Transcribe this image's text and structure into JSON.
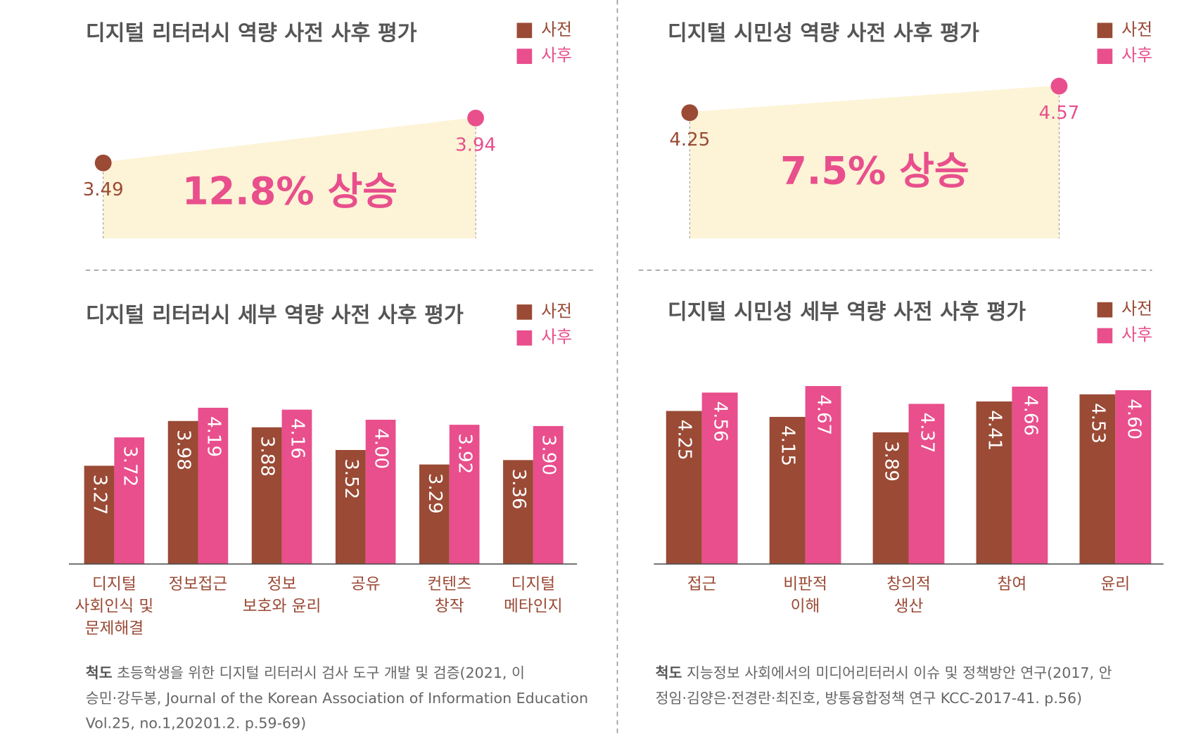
{
  "chart_data": [
    {
      "type": "slope",
      "title": "디지털 리터러시 역량 사전 사후 평가",
      "annotation": "12.8% 상승",
      "series": [
        {
          "name": "사전",
          "color": "#9a4a35",
          "values": [
            3.49
          ]
        },
        {
          "name": "사후",
          "color": "#e84f8c",
          "values": [
            3.94
          ]
        }
      ],
      "ylim": [
        2.735,
        4.36
      ]
    },
    {
      "type": "slope",
      "title": "디지털 시민성 역량 사전 사후 평가",
      "annotation": "7.5% 상승",
      "series": [
        {
          "name": "사전",
          "color": "#9a4a35",
          "values": [
            4.25
          ]
        },
        {
          "name": "사후",
          "color": "#e84f8c",
          "values": [
            4.57
          ]
        }
      ],
      "ylim": [
        2.74,
        4.69
      ]
    },
    {
      "type": "bar",
      "title": "디지털 리터러시 세부 역량 사전 사후 평가",
      "categories": [
        [
          "디지털",
          "사회인식 및",
          "문제해결"
        ],
        [
          "정보접근"
        ],
        [
          "정보",
          "보호와 윤리"
        ],
        [
          "공유"
        ],
        [
          "컨텐츠",
          "창작"
        ],
        [
          "디지털",
          "메타인지"
        ]
      ],
      "series": [
        {
          "name": "사전",
          "color": "#9a4a35",
          "values": [
            3.27,
            3.98,
            3.88,
            3.52,
            3.29,
            3.36
          ],
          "value_labels": [
            "3.27",
            "3.98",
            "3.88",
            "3.52",
            "3.29",
            "3.36"
          ]
        },
        {
          "name": "사후",
          "color": "#e84f8c",
          "values": [
            3.72,
            4.19,
            4.16,
            4.0,
            3.92,
            3.9
          ],
          "value_labels": [
            "3.72",
            "4.19",
            "4.16",
            "4.00",
            "3.92",
            "3.90"
          ]
        }
      ],
      "ylim": [
        1.71,
        4.5
      ],
      "source": {
        "label": "척도",
        "lines": [
          "초등학생을 위한 디지털 리터러시 검사 도구 개발 및 검증(2021, 이",
          "승민·강두봉, Journal of the Korean Association of Information Education",
          "Vol.25, no.1,20201.2. p.59-69)"
        ]
      }
    },
    {
      "type": "bar",
      "title": "디지털 시민성 세부 역량 사전 사후 평가",
      "categories": [
        [
          "접근"
        ],
        [
          "비판적",
          "이해"
        ],
        [
          "창의적",
          "생산"
        ],
        [
          "참여"
        ],
        [
          "윤리"
        ]
      ],
      "series": [
        {
          "name": "사전",
          "color": "#9a4a35",
          "values": [
            4.25,
            4.15,
            3.89,
            4.41,
            4.53
          ],
          "value_labels": [
            "4.25",
            "4.15",
            "3.89",
            "4.41",
            "4.53"
          ]
        },
        {
          "name": "사후",
          "color": "#e84f8c",
          "values": [
            4.56,
            4.67,
            4.37,
            4.66,
            4.6
          ],
          "value_labels": [
            "4.56",
            "4.67",
            "4.37",
            "4.66",
            "4.60"
          ]
        }
      ],
      "ylim": [
        1.67,
        4.8
      ],
      "source": {
        "label": "척도",
        "lines": [
          "지능정보 사회에서의 미디어리터러시 이슈 및 정책방안 연구(2017, 안",
          "정임·김양은·전경란·최진호, 방통융합정책 연구 KCC-2017-41. p.56)"
        ]
      }
    }
  ]
}
